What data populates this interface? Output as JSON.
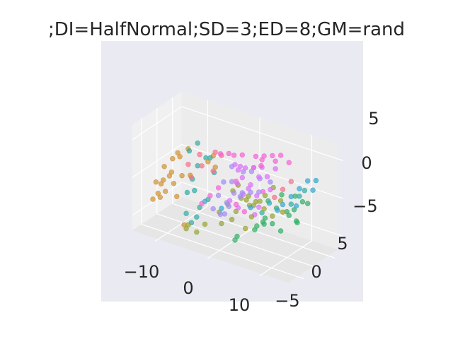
{
  "chart_data": {
    "type": "scatter",
    "projection": "3d",
    "title": ";DI=HalfNormal;SD=3;ED=8;GM=rand",
    "x_ticks": [
      "−10",
      "0",
      "10"
    ],
    "y_ticks": [
      "−5",
      "0",
      "5"
    ],
    "z_ticks": [
      "−5",
      "0",
      "5"
    ],
    "xlim": [
      -15,
      15
    ],
    "ylim": [
      -8,
      8
    ],
    "zlim": [
      -7,
      7
    ],
    "grid": true,
    "legend": "none",
    "background_color": "#eaeaf2",
    "pane_color": "#f0f0f0",
    "grid_color": "#ffffff",
    "point_opacity": 0.7,
    "series": [
      {
        "color": "#f564d4",
        "points": [
          [
            0,
            -2,
            5
          ],
          [
            2,
            -1,
            5
          ],
          [
            4,
            0,
            5
          ],
          [
            5,
            1,
            5
          ],
          [
            6,
            2,
            5
          ],
          [
            7,
            3,
            5
          ],
          [
            8,
            4,
            4
          ],
          [
            6,
            3,
            4
          ],
          [
            4,
            2,
            4
          ],
          [
            3,
            1,
            3
          ],
          [
            -1,
            -3,
            5
          ],
          [
            1,
            -2,
            5
          ],
          [
            5,
            0,
            4
          ],
          [
            2,
            -3,
            -1
          ],
          [
            3,
            -2,
            -2
          ],
          [
            -3,
            -3,
            -1
          ],
          [
            -2,
            -2,
            0
          ],
          [
            -4,
            -4,
            -2
          ],
          [
            -1,
            2,
            0
          ],
          [
            3,
            4,
            -1
          ]
        ]
      },
      {
        "color": "#dc71fa",
        "points": [
          [
            0,
            0,
            3
          ],
          [
            1,
            0,
            3
          ],
          [
            2,
            0,
            3
          ],
          [
            3,
            1,
            3
          ],
          [
            4,
            1,
            2
          ],
          [
            5,
            2,
            2
          ],
          [
            2,
            -1,
            2
          ],
          [
            1,
            -1,
            1
          ],
          [
            3,
            0,
            1
          ],
          [
            4,
            2,
            3
          ],
          [
            6,
            3,
            3
          ],
          [
            0,
            1,
            2
          ],
          [
            2,
            1,
            0
          ],
          [
            1,
            1,
            -1
          ],
          [
            3,
            2,
            -1
          ],
          [
            5,
            3,
            0
          ],
          [
            -1,
            0,
            -2
          ],
          [
            0,
            1,
            -3
          ],
          [
            2,
            3,
            -4
          ],
          [
            4,
            1,
            -2
          ]
        ]
      },
      {
        "color": "#f77189",
        "points": [
          [
            -4,
            -4,
            3
          ],
          [
            -5,
            -3,
            4
          ],
          [
            -3,
            -2,
            2
          ],
          [
            -6,
            -4,
            1
          ],
          [
            -2,
            -3,
            5
          ],
          [
            -6,
            -5,
            3
          ],
          [
            -2,
            -1,
            4
          ],
          [
            8,
            2,
            1
          ],
          [
            9,
            3,
            2
          ],
          [
            7,
            1,
            0
          ]
        ]
      },
      {
        "color": "#d09232",
        "points": [
          [
            -12,
            -3,
            -1
          ],
          [
            -13,
            -2,
            -2
          ],
          [
            -11,
            -2,
            0
          ],
          [
            -12,
            -1,
            -1
          ],
          [
            -13,
            -3,
            -3
          ],
          [
            -11,
            -4,
            -2
          ],
          [
            -12,
            0,
            1
          ],
          [
            -10,
            -3,
            -1
          ],
          [
            -9,
            -2,
            0
          ],
          [
            -14,
            -2,
            -2
          ],
          [
            -10,
            -1,
            2
          ],
          [
            -11,
            0,
            2
          ],
          [
            -9,
            0,
            3
          ],
          [
            -12,
            -4,
            -3
          ],
          [
            -13,
            -1,
            0
          ],
          [
            -14,
            -3,
            -4
          ],
          [
            -10,
            -2,
            -3
          ],
          [
            -8,
            -1,
            0
          ],
          [
            -3,
            -2,
            4
          ],
          [
            -4,
            -2,
            3
          ],
          [
            -2,
            -3,
            3
          ],
          [
            -8,
            -3,
            -6
          ]
        ]
      },
      {
        "color": "#97a431",
        "points": [
          [
            -1,
            1,
            -1
          ],
          [
            0,
            2,
            -2
          ],
          [
            1,
            2,
            -2
          ],
          [
            2,
            1,
            -1
          ],
          [
            3,
            1,
            -2
          ],
          [
            4,
            0,
            -1
          ],
          [
            0,
            1,
            0
          ],
          [
            -2,
            1,
            -3
          ],
          [
            -1,
            2,
            -4
          ],
          [
            1,
            3,
            -3
          ],
          [
            2,
            2,
            -4
          ],
          [
            5,
            1,
            -2
          ],
          [
            6,
            2,
            -3
          ],
          [
            3,
            3,
            -2
          ],
          [
            4,
            3,
            -1
          ],
          [
            -6,
            -5,
            -5
          ],
          [
            -7,
            -4,
            -6
          ],
          [
            -5,
            -4,
            -6
          ],
          [
            -3,
            0,
            -4
          ],
          [
            -2,
            -1,
            -5
          ],
          [
            0,
            -1,
            -4
          ],
          [
            2,
            0,
            -5
          ],
          [
            -4,
            -3,
            -5
          ],
          [
            8,
            2,
            -2
          ],
          [
            7,
            3,
            -1
          ],
          [
            5,
            4,
            0
          ]
        ]
      },
      {
        "color": "#32b165",
        "points": [
          [
            6,
            2,
            -4
          ],
          [
            7,
            3,
            -5
          ],
          [
            8,
            4,
            -3
          ],
          [
            9,
            4,
            -2
          ],
          [
            10,
            5,
            -1
          ],
          [
            5,
            1,
            -4
          ],
          [
            4,
            3,
            -4
          ],
          [
            3,
            2,
            -5
          ],
          [
            2,
            3,
            -6
          ],
          [
            7,
            5,
            -3
          ],
          [
            9,
            5,
            -4
          ],
          [
            10,
            3,
            -3
          ],
          [
            3,
            4,
            -5
          ],
          [
            1,
            -1,
            -6
          ],
          [
            0,
            0,
            -7
          ],
          [
            4,
            4,
            -2
          ],
          [
            6,
            5,
            -1
          ],
          [
            8,
            6,
            -1
          ],
          [
            11,
            5,
            -1
          ],
          [
            5,
            5,
            -3
          ]
        ]
      },
      {
        "color": "#35aca4",
        "points": [
          [
            -6,
            -2,
            5
          ],
          [
            -7,
            -3,
            4
          ],
          [
            -5,
            -1,
            3
          ],
          [
            -6,
            -2,
            2
          ],
          [
            -4,
            0,
            1
          ],
          [
            -7,
            -2,
            0
          ],
          [
            -6,
            -3,
            -1
          ],
          [
            -5,
            -3,
            -3
          ],
          [
            -4,
            -2,
            -2
          ],
          [
            -5,
            -4,
            -4
          ],
          [
            -6,
            -4,
            -5
          ],
          [
            -7,
            -4,
            -4
          ],
          [
            10,
            4,
            0
          ],
          [
            11,
            4,
            1
          ],
          [
            9,
            3,
            -1
          ],
          [
            -3,
            -3,
            4
          ],
          [
            -8,
            -2,
            -2
          ],
          [
            4,
            2,
            -3
          ]
        ]
      },
      {
        "color": "#38a7d0",
        "points": [
          [
            9,
            3,
            0
          ],
          [
            10,
            4,
            1
          ],
          [
            11,
            5,
            2
          ],
          [
            8,
            2,
            -1
          ],
          [
            12,
            5,
            1
          ],
          [
            7,
            2,
            -2
          ],
          [
            10,
            3,
            -1
          ],
          [
            6,
            1,
            -1
          ],
          [
            3,
            0,
            -2
          ],
          [
            12,
            6,
            2
          ],
          [
            -4,
            -3,
            -2
          ],
          [
            -2,
            -1,
            -3
          ]
        ]
      },
      {
        "color": "#a48cf4",
        "points": [
          [
            -1,
            -2,
            1
          ],
          [
            0,
            -1,
            1
          ],
          [
            -2,
            -2,
            -1
          ],
          [
            1,
            -2,
            0
          ],
          [
            -1,
            -1,
            -2
          ],
          [
            -3,
            -2,
            -3
          ],
          [
            1,
            0,
            -1
          ],
          [
            2,
            -1,
            0
          ],
          [
            -2,
            0,
            -4
          ],
          [
            0,
            -2,
            -2
          ],
          [
            3,
            0,
            0
          ],
          [
            1,
            1,
            2
          ],
          [
            2,
            2,
            2
          ],
          [
            4,
            1,
            0
          ],
          [
            -1,
            -3,
            -3
          ],
          [
            5,
            3,
            1
          ],
          [
            3,
            3,
            1
          ],
          [
            0,
            -1,
            3
          ]
        ]
      }
    ]
  }
}
